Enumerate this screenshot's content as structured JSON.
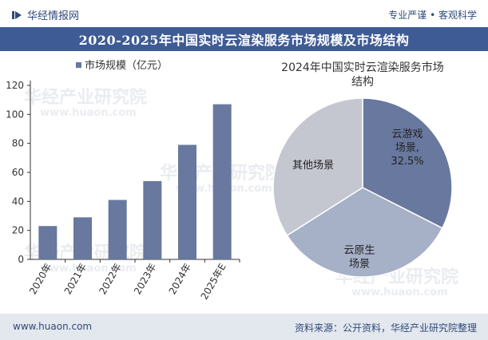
{
  "header": {
    "brand": "华经情报网",
    "tagline": "专业严谨 • 客观科学",
    "title": "2020-2025年中国实时云渲染服务市场规模及市场结构"
  },
  "footer": {
    "url": "www.huaon.com",
    "source": "资料来源：公开资料，华经产业研究院整理"
  },
  "watermark": {
    "text_cn": "华经产业研究院",
    "text_en": "www.huaon.com"
  },
  "colors": {
    "accent": "#3e5b95",
    "bar": "#68789e",
    "pie_game": "#68789e",
    "pie_native": "#a6b0c7",
    "pie_other": "#c4c7d0"
  },
  "chart_data": [
    {
      "type": "bar",
      "title": "",
      "legend": "市场规模（亿元）",
      "categories": [
        "2020年",
        "2021年",
        "2022年",
        "2023年",
        "2024年",
        "2025年E"
      ],
      "values": [
        23,
        29,
        41,
        54,
        79,
        107
      ],
      "ylim": [
        0,
        120
      ],
      "yticks": [
        0,
        20,
        40,
        60,
        80,
        100,
        120
      ],
      "grid": false
    },
    {
      "type": "pie",
      "title": "2024年中国实时云渲染服务市场结构",
      "slices": [
        {
          "label": "云游戏场景",
          "value": 32.5,
          "display": [
            "云游戏",
            "场景,",
            "32.5%"
          ]
        },
        {
          "label": "云原生场景",
          "value": 33.5,
          "display": [
            "云原生",
            "场景"
          ]
        },
        {
          "label": "其他场景",
          "value": 34.0,
          "display": [
            "其他场景"
          ]
        }
      ]
    }
  ]
}
